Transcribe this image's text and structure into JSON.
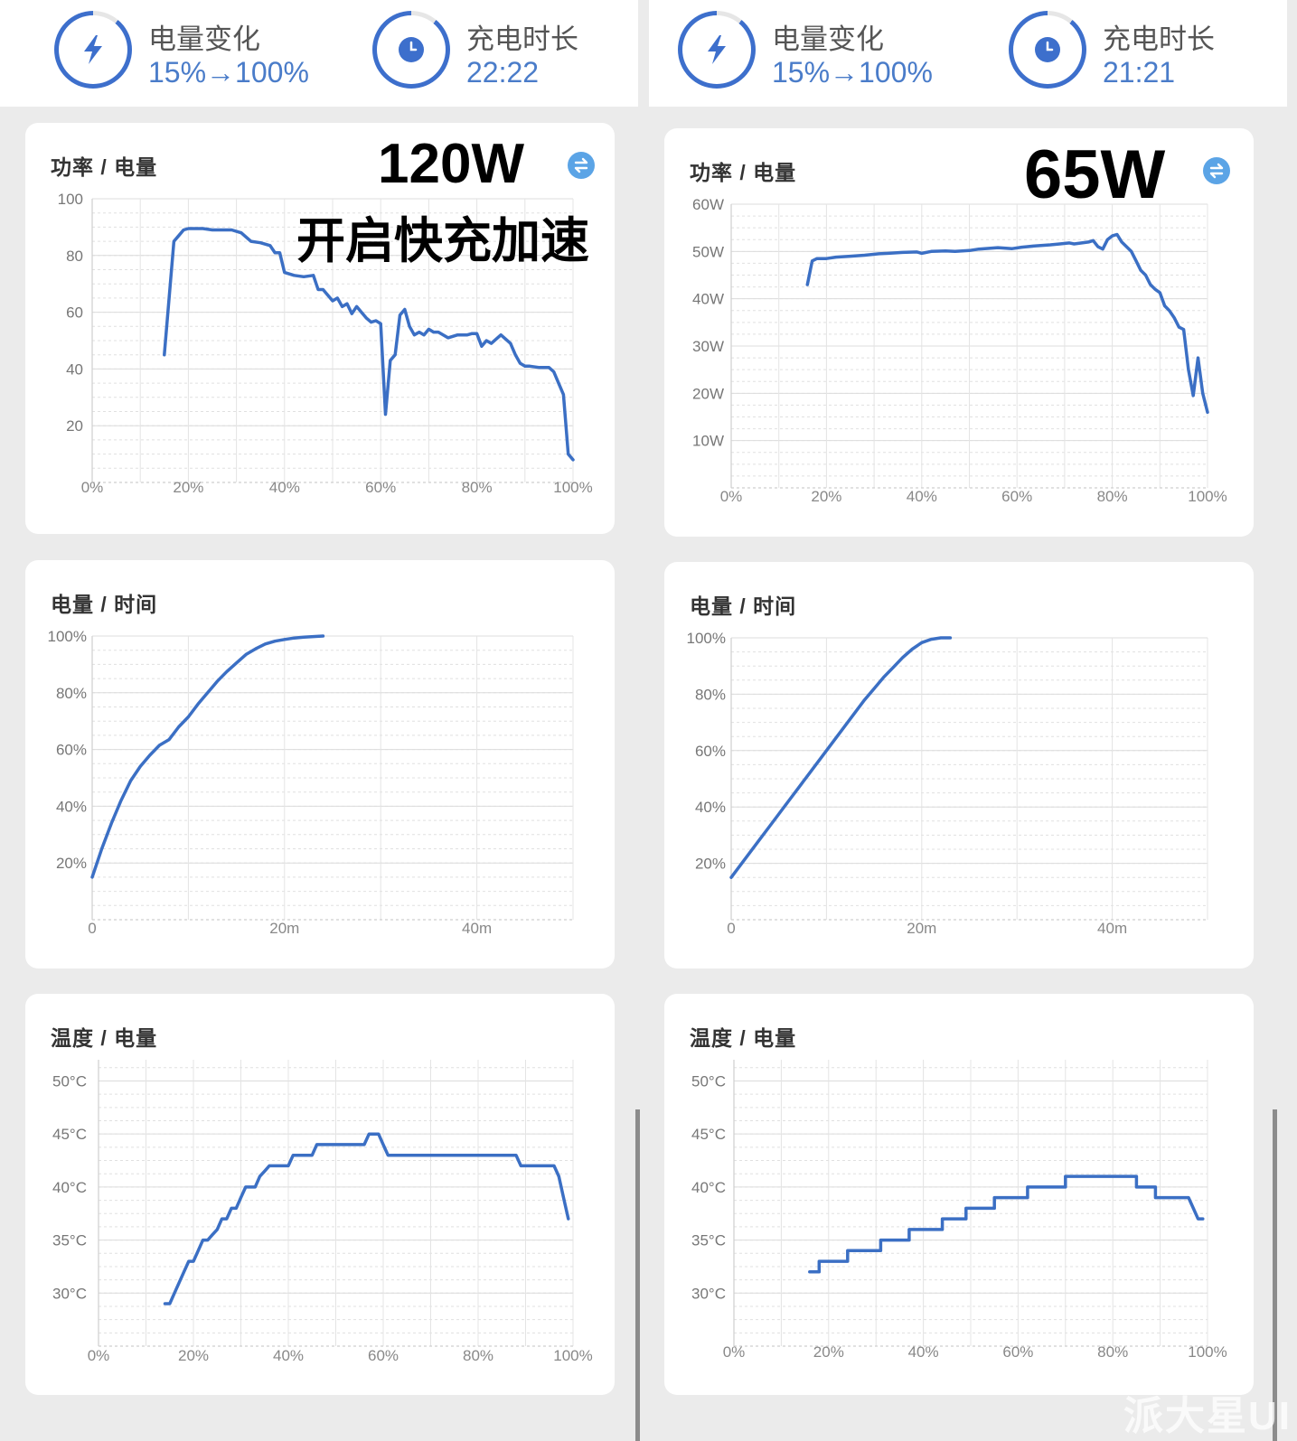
{
  "left": {
    "stats": [
      {
        "label": "电量变化",
        "value": "15%→100%",
        "icon": "bolt-icon"
      },
      {
        "label": "充电时长",
        "value": "22:22",
        "icon": "clock-icon"
      }
    ],
    "overlay": {
      "wattage": "120W",
      "note": "开启快充加速"
    },
    "cards": {
      "power": "功率 / 电量",
      "battery_time": "电量 / 时间",
      "temp": "温度 / 电量"
    }
  },
  "right": {
    "stats": [
      {
        "label": "电量变化",
        "value": "15%→100%",
        "icon": "bolt-icon"
      },
      {
        "label": "充电时长",
        "value": "21:21",
        "icon": "clock-icon"
      }
    ],
    "overlay": {
      "wattage": "65W"
    },
    "cards": {
      "power": "功率 / 电量",
      "battery_time": "电量 / 时间",
      "temp": "温度 / 电量"
    }
  },
  "watermark": "派大星UI",
  "colors": {
    "line": "#3b6fc4",
    "accent": "#3d6fcc",
    "value_text": "#4a7cc9"
  },
  "chart_data": [
    {
      "id": "left-power",
      "type": "line",
      "xlim": [
        0,
        100
      ],
      "ylim": [
        0,
        100
      ],
      "xticks": [
        0,
        20,
        40,
        60,
        80,
        100
      ],
      "xtick_labels": [
        "0%",
        "20%",
        "40%",
        "60%",
        "80%",
        "100%"
      ],
      "yticks": [
        20,
        40,
        60,
        80,
        100
      ],
      "ytick_labels": [
        "20",
        "40",
        "60",
        "80",
        "100"
      ],
      "x": [
        15,
        17,
        18,
        19,
        20,
        21,
        23,
        25,
        27,
        29,
        31,
        33,
        35,
        37,
        38,
        39,
        40,
        42,
        44,
        46,
        47,
        48,
        49,
        50,
        51,
        52,
        53,
        54,
        55,
        56,
        57,
        58,
        59,
        60,
        61,
        62,
        63,
        64,
        65,
        66,
        67,
        68,
        69,
        70,
        71,
        72,
        74,
        76,
        77,
        78,
        79,
        80,
        81,
        82,
        83,
        85,
        87,
        88,
        89,
        90,
        91,
        93,
        94,
        95,
        96,
        97,
        98,
        99,
        100
      ],
      "y": [
        45,
        85,
        87,
        89,
        89.5,
        89.5,
        89.5,
        89,
        89,
        89,
        88,
        85,
        84.5,
        83.5,
        81,
        81,
        74,
        73,
        72.5,
        73,
        68,
        68,
        66,
        64,
        65,
        62,
        63,
        59.5,
        62,
        60,
        58,
        56.5,
        57,
        56,
        24,
        43,
        45,
        59,
        61,
        55,
        52,
        53,
        52,
        54,
        53,
        53,
        51,
        52,
        52,
        52,
        52.5,
        52.5,
        48,
        50,
        49,
        52,
        49,
        45,
        42,
        41,
        41,
        40.5,
        40.5,
        40.5,
        39,
        35,
        31,
        10,
        8
      ]
    },
    {
      "id": "right-power",
      "type": "line",
      "xlim": [
        0,
        100
      ],
      "ylim": [
        0,
        60
      ],
      "xticks": [
        0,
        20,
        40,
        60,
        80,
        100
      ],
      "xtick_labels": [
        "0%",
        "20%",
        "40%",
        "60%",
        "80%",
        "100%"
      ],
      "yticks": [
        10,
        20,
        30,
        40,
        50,
        60
      ],
      "ytick_labels": [
        "10W",
        "20W",
        "30W",
        "40W",
        "50W",
        "60W"
      ],
      "x": [
        16,
        17,
        18,
        20,
        22,
        25,
        28,
        31,
        33,
        36,
        39,
        40,
        42,
        45,
        47,
        50,
        52,
        56,
        59,
        61,
        62,
        64,
        67,
        69,
        71,
        72,
        75,
        76,
        77,
        78,
        79,
        80,
        81,
        82,
        84,
        85,
        86,
        87,
        88,
        89,
        90,
        91,
        92,
        93,
        94,
        95,
        96,
        97,
        98,
        99,
        100
      ],
      "y": [
        43,
        48,
        48.5,
        48.5,
        48.8,
        49,
        49.2,
        49.5,
        49.6,
        49.8,
        49.9,
        49.6,
        50,
        50.1,
        50,
        50.2,
        50.5,
        50.8,
        50.6,
        50.9,
        51,
        51.2,
        51.4,
        51.6,
        51.8,
        51.6,
        52,
        52.3,
        51,
        50.5,
        52.5,
        53.3,
        53.6,
        52,
        50,
        48,
        46,
        45,
        43,
        42,
        41.3,
        38.5,
        37.5,
        36,
        34,
        33.5,
        25,
        19.5,
        27.5,
        20,
        16
      ]
    },
    {
      "id": "left-battery-time",
      "type": "line",
      "xlim": [
        0,
        50
      ],
      "ylim": [
        0,
        100
      ],
      "xticks": [
        0,
        20,
        40
      ],
      "xtick_labels": [
        "0",
        "20m",
        "40m"
      ],
      "yticks": [
        20,
        40,
        60,
        80,
        100
      ],
      "ytick_labels": [
        "20%",
        "40%",
        "60%",
        "80%",
        "100%"
      ],
      "x": [
        0,
        1,
        2,
        3,
        4,
        5,
        6,
        7,
        8,
        9,
        10,
        11,
        12,
        13,
        14,
        15,
        16,
        17,
        18,
        19,
        20,
        21,
        22,
        23,
        24
      ],
      "y": [
        15,
        25,
        34,
        42,
        49,
        54,
        58,
        61.5,
        63.5,
        68,
        71.5,
        76,
        80,
        84,
        87.5,
        90.5,
        93.5,
        95.5,
        97.2,
        98.2,
        98.8,
        99.3,
        99.6,
        99.8,
        100
      ]
    },
    {
      "id": "right-battery-time",
      "type": "line",
      "xlim": [
        0,
        50
      ],
      "ylim": [
        0,
        100
      ],
      "xticks": [
        0,
        20,
        40
      ],
      "xtick_labels": [
        "0",
        "20m",
        "40m"
      ],
      "yticks": [
        20,
        40,
        60,
        80,
        100
      ],
      "ytick_labels": [
        "20%",
        "40%",
        "60%",
        "80%",
        "100%"
      ],
      "x": [
        0,
        1,
        2,
        3,
        4,
        5,
        6,
        7,
        8,
        9,
        10,
        11,
        12,
        13,
        14,
        15,
        16,
        17,
        18,
        19,
        20,
        21,
        22,
        23
      ],
      "y": [
        15,
        19.5,
        24,
        28.5,
        33,
        37.5,
        42,
        46.5,
        51,
        55.5,
        60,
        64.5,
        69,
        73.5,
        78,
        82,
        86,
        89.5,
        93,
        96,
        98.3,
        99.5,
        100,
        100
      ]
    },
    {
      "id": "left-temp",
      "type": "line",
      "xlim": [
        0,
        100
      ],
      "ylim": [
        25,
        52
      ],
      "xticks": [
        0,
        20,
        40,
        60,
        80,
        100
      ],
      "xtick_labels": [
        "0%",
        "20%",
        "40%",
        "60%",
        "80%",
        "100%"
      ],
      "yticks": [
        30,
        35,
        40,
        45,
        50
      ],
      "ytick_labels": [
        "30°C",
        "35°C",
        "40°C",
        "45°C",
        "50°C"
      ],
      "x": [
        14,
        15,
        16,
        18,
        19,
        20,
        21,
        22,
        23,
        24,
        25,
        26,
        27,
        28,
        29,
        30,
        31,
        32,
        33,
        34,
        35,
        36,
        38,
        39,
        40,
        41,
        42,
        43,
        44,
        45,
        46,
        47,
        48,
        50,
        52,
        54,
        56,
        57,
        58,
        59,
        60,
        61,
        62,
        63,
        65,
        67,
        70,
        75,
        80,
        85,
        88,
        89,
        90,
        92,
        94,
        96,
        97,
        98,
        99
      ],
      "y": [
        29,
        29,
        30,
        32,
        33,
        33,
        34,
        35,
        35,
        35.5,
        36,
        37,
        37,
        38,
        38,
        39,
        40,
        40,
        40,
        41,
        41.5,
        42,
        42,
        42,
        42,
        43,
        43,
        43,
        43,
        43,
        44,
        44,
        44,
        44,
        44,
        44,
        44,
        45,
        45,
        45,
        44,
        43,
        43,
        43,
        43,
        43,
        43,
        43,
        43,
        43,
        43,
        42,
        42,
        42,
        42,
        42,
        41,
        39,
        37
      ]
    },
    {
      "id": "right-temp",
      "type": "line",
      "xlim": [
        0,
        100
      ],
      "ylim": [
        25,
        52
      ],
      "xticks": [
        0,
        20,
        40,
        60,
        80,
        100
      ],
      "xtick_labels": [
        "0%",
        "20%",
        "40%",
        "60%",
        "80%",
        "100%"
      ],
      "yticks": [
        30,
        35,
        40,
        45,
        50
      ],
      "ytick_labels": [
        "30°C",
        "35°C",
        "40°C",
        "45°C",
        "50°C"
      ],
      "x": [
        16,
        18,
        18,
        21,
        24,
        24,
        30,
        31,
        31,
        36,
        37,
        37,
        43,
        44,
        44,
        48,
        49,
        49,
        54,
        55,
        55,
        60,
        62,
        62,
        69,
        70,
        70,
        77,
        78,
        78,
        84,
        85,
        85,
        88,
        89,
        89,
        94,
        96,
        97,
        98,
        99
      ],
      "y": [
        32,
        32,
        33,
        33,
        33,
        34,
        34,
        34,
        35,
        35,
        35,
        36,
        36,
        36,
        37,
        37,
        37,
        38,
        38,
        38,
        39,
        39,
        39,
        40,
        40,
        40,
        41,
        41,
        41,
        41,
        41,
        41,
        40,
        40,
        40,
        39,
        39,
        39,
        38,
        37,
        37
      ]
    }
  ]
}
